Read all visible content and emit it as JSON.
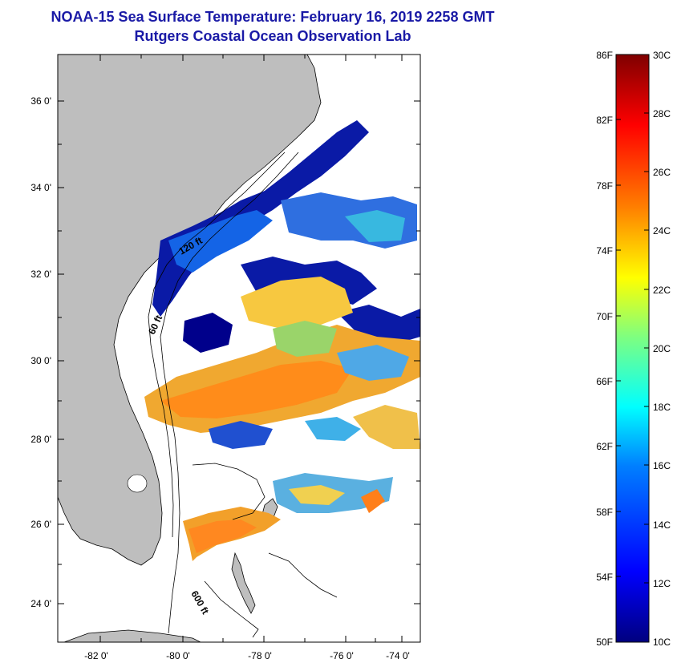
{
  "header": {
    "title": "NOAA-15 Sea Surface Temperature:  February 16, 2019 2258 GMT",
    "subtitle": "Rutgers Coastal Ocean Observation Lab"
  },
  "map": {
    "lat_labels": [
      "36 0'",
      "34 0'",
      "32 0'",
      "30 0'",
      "28 0'",
      "26 0'",
      "24 0'"
    ],
    "lon_labels": [
      "-82 0'",
      "-80 0'",
      "-78 0'",
      "-76 0'",
      "-74 0'"
    ],
    "contour_labels": [
      "120 ft",
      "60 ft",
      "600 ft"
    ]
  },
  "colorbar": {
    "fahrenheit_labels": [
      "86F",
      "82F",
      "78F",
      "74F",
      "70F",
      "66F",
      "62F",
      "58F",
      "54F",
      "50F"
    ],
    "celsius_labels": [
      "30C",
      "28C",
      "26C",
      "24C",
      "22C",
      "20C",
      "18C",
      "16C",
      "14C",
      "12C",
      "10C"
    ],
    "min_c": 10,
    "max_c": 30
  },
  "colors": {
    "title": "#1a1aa6",
    "land": "#bebebe",
    "cold": "#00008b",
    "warm": "#800000"
  }
}
